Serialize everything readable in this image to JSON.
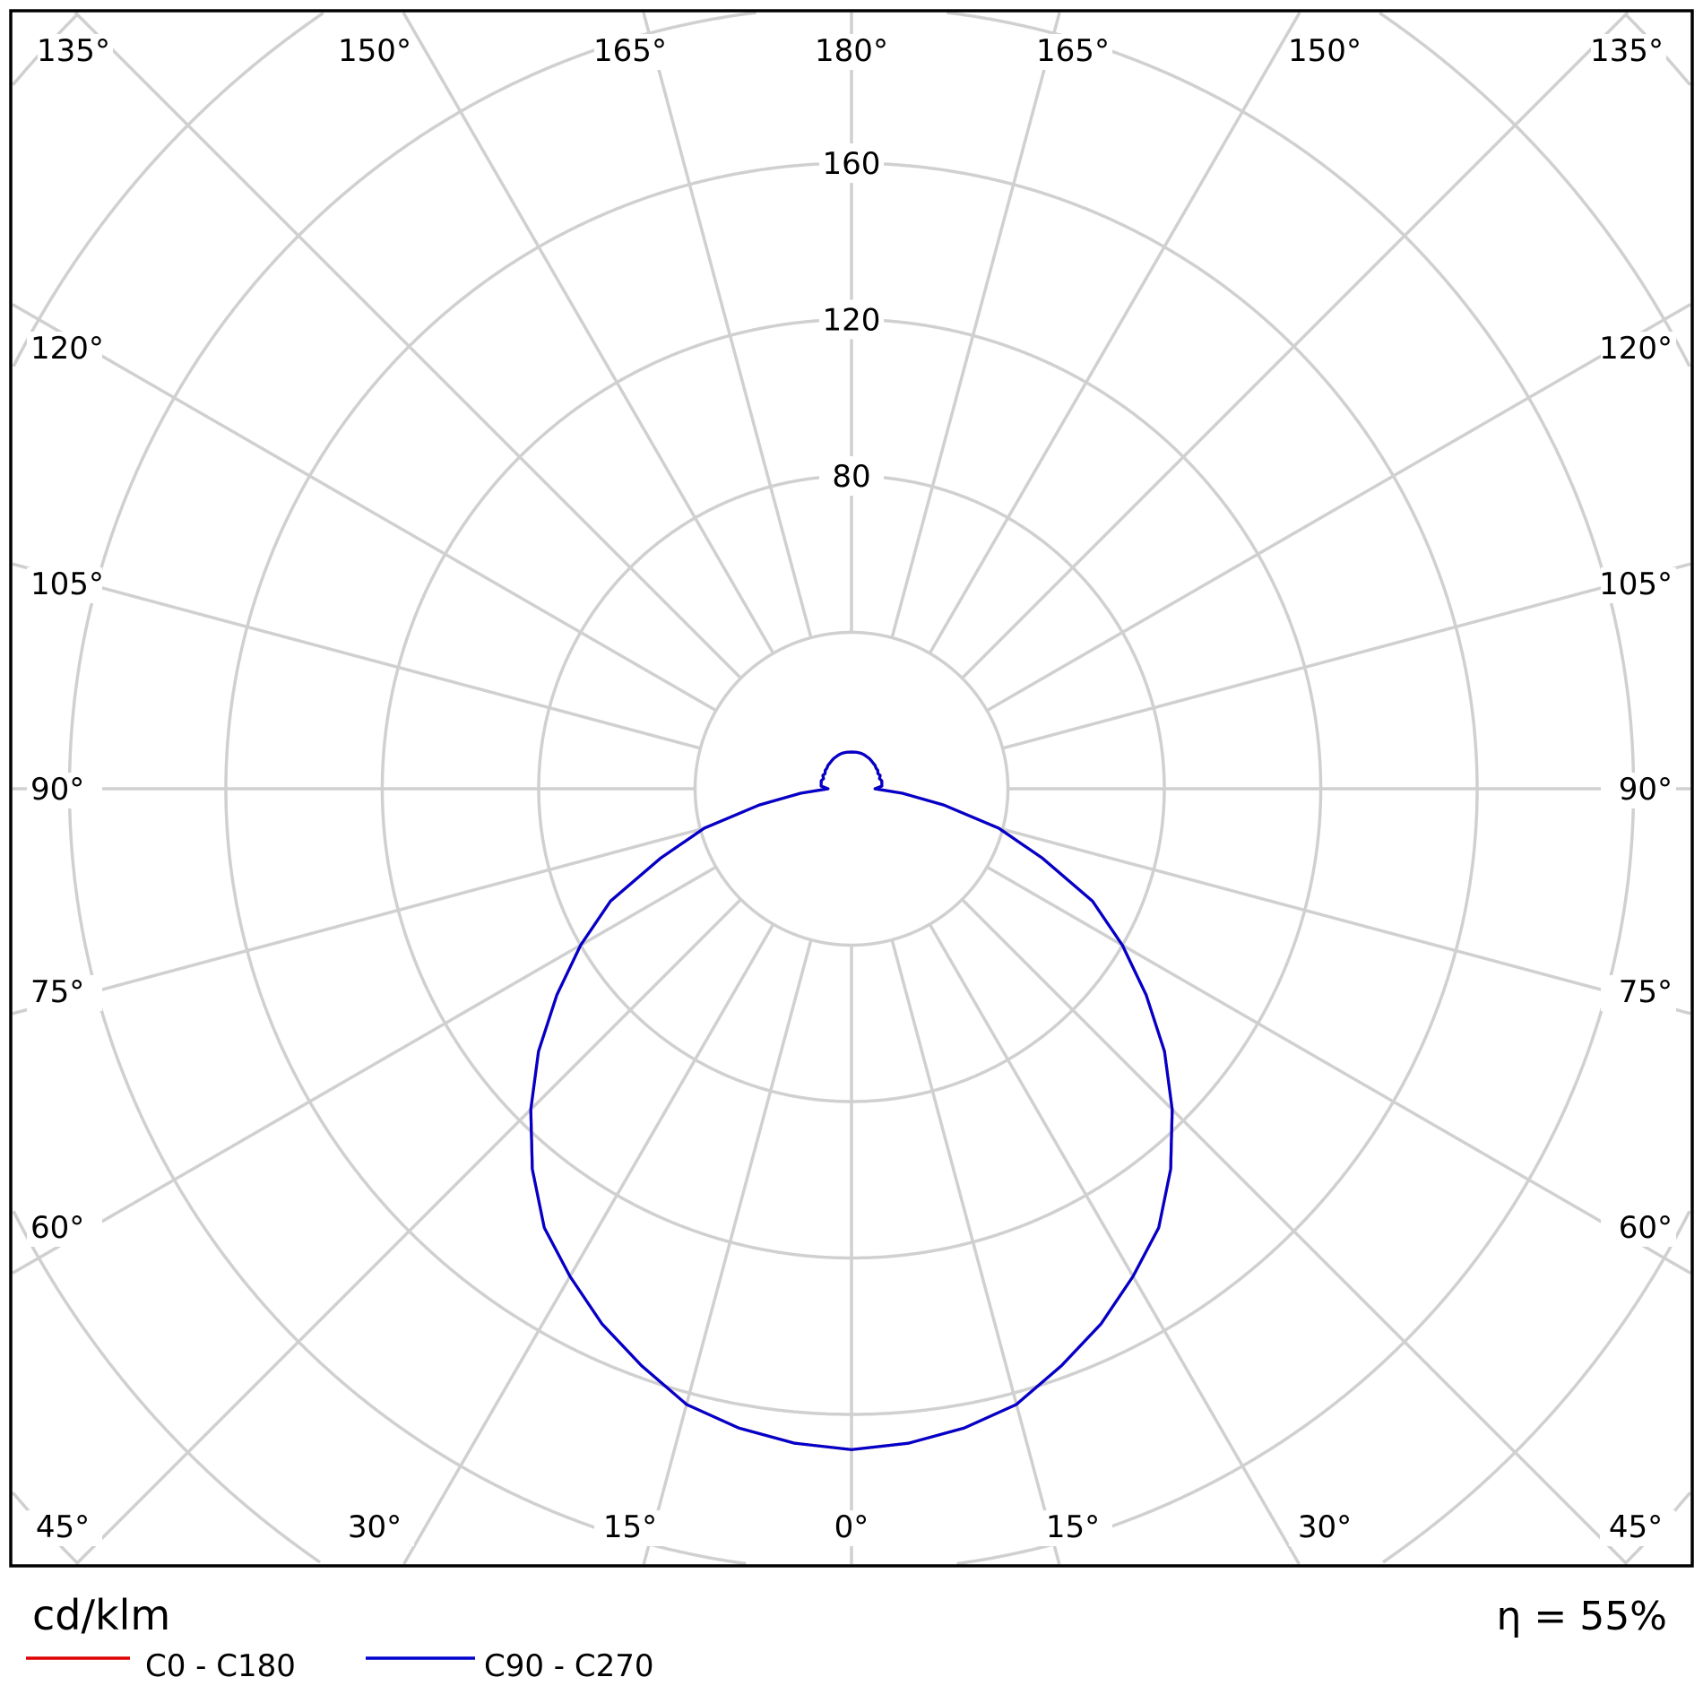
{
  "chart_data": {
    "type": "polar",
    "unit_label": "cd/klm",
    "efficiency_label": "η = 55%",
    "radial_ticks": [
      40,
      80,
      120,
      160,
      200,
      240,
      280,
      320
    ],
    "radial_tick_labels": [
      "80",
      "120",
      "160"
    ],
    "radial_label_values": [
      80,
      120,
      160
    ],
    "angle_labels": {
      "top": [
        "135°",
        "150°",
        "165°",
        "180°",
        "165°",
        "150°",
        "135°"
      ],
      "left": [
        "120°",
        "105°",
        "90°",
        "75°",
        "60°"
      ],
      "right": [
        "120°",
        "105°",
        "90°",
        "75°",
        "60°"
      ],
      "bottom": [
        "45°",
        "30°",
        "15°",
        "0°",
        "15°",
        "30°",
        "45°"
      ]
    },
    "grid": true,
    "legend_placement": "bottom-left",
    "gamma_deg": [
      0,
      5,
      10,
      15,
      20,
      25,
      30,
      35,
      40,
      45,
      50,
      55,
      60,
      65,
      70,
      75,
      80,
      85,
      90,
      95,
      100,
      105,
      110,
      115,
      120,
      125,
      130,
      135,
      140,
      145,
      150,
      155,
      160,
      165,
      170,
      175,
      180
    ],
    "series": [
      {
        "name": "C0 - C180",
        "color": "#dd0000",
        "values": [
          169,
          168,
          166,
          163,
          157,
          151,
          144,
          137,
          127,
          116,
          104.5,
          92,
          80,
          68,
          52,
          39,
          24,
          13,
          6,
          7.8,
          7.9,
          8.0,
          7.6,
          8.1,
          7.8,
          8.2,
          8.2,
          8.5,
          8.6,
          8.8,
          9.0,
          9.1,
          9.3,
          9.4,
          9.4,
          9.4,
          9.4
        ]
      },
      {
        "name": "C90 - C270",
        "color": "#0000cc",
        "values": [
          169,
          168,
          166,
          163,
          157,
          151,
          144,
          137,
          127,
          116,
          104.5,
          92,
          80,
          68,
          52,
          39,
          24,
          13,
          6,
          7.8,
          7.9,
          8.0,
          7.6,
          8.1,
          7.8,
          8.2,
          8.2,
          8.5,
          8.6,
          8.8,
          9.0,
          9.1,
          9.3,
          9.4,
          9.4,
          9.4,
          9.4
        ]
      }
    ]
  }
}
